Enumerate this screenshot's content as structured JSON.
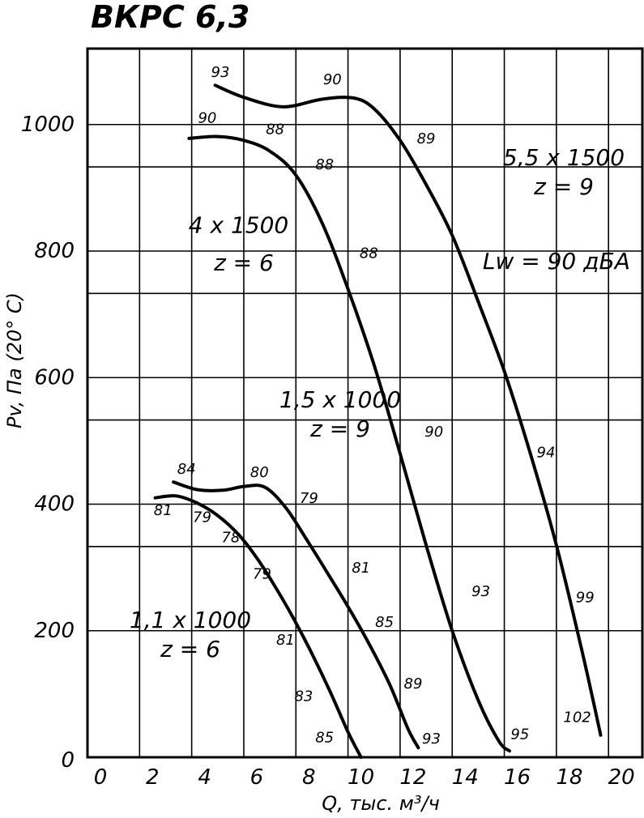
{
  "chart_data": {
    "type": "line",
    "title": "ВКРС 6,3",
    "xlabel": "Q, тыс. м³/ч",
    "ylabel": "Pv, Па (20° С)",
    "xlim": [
      0,
      21.3
    ],
    "ylim": [
      0,
      1120
    ],
    "x_ticks": [
      0,
      2,
      4,
      6,
      8,
      10,
      12,
      14,
      16,
      18,
      20
    ],
    "x_tick_labels": [
      "0",
      "2",
      "4",
      "6",
      "8",
      "10",
      "12",
      "14",
      "16",
      "18",
      "20"
    ],
    "y_labeled_ticks": [
      0,
      200,
      400,
      600,
      800,
      1000
    ],
    "y_tick_labels": [
      "0",
      "200",
      "400",
      "600",
      "800",
      "1000"
    ],
    "y_gridlines": [
      200,
      333,
      400,
      533,
      600,
      733,
      800,
      933,
      1000
    ],
    "grid": true,
    "series": [
      {
        "x": [
          2.6,
          3.4,
          4.2,
          5.0,
          5.8,
          6.5,
          7.2,
          7.9,
          8.6,
          9.3,
          10.0,
          10.5
        ],
        "values": [
          410,
          413,
          402,
          382,
          352,
          315,
          270,
          220,
          165,
          105,
          40,
          0
        ],
        "caption": [
          "1,1 x 1000",
          "z = 6"
        ],
        "points": [
          {
            "x": 2.9,
            "y": 383,
            "label": "81"
          },
          {
            "x": 4.4,
            "y": 372,
            "label": "79"
          },
          {
            "x": 5.5,
            "y": 340,
            "label": "78"
          },
          {
            "x": 6.7,
            "y": 282,
            "label": "79"
          },
          {
            "x": 7.6,
            "y": 178,
            "label": "81"
          },
          {
            "x": 8.3,
            "y": 89,
            "label": "83"
          },
          {
            "x": 9.1,
            "y": 24,
            "label": "85"
          }
        ]
      },
      {
        "x": [
          3.3,
          4.2,
          5.2,
          6.0,
          6.8,
          7.6,
          8.4,
          9.2,
          10.0,
          10.8,
          11.6,
          12.3,
          12.7
        ],
        "values": [
          435,
          423,
          422,
          428,
          427,
          395,
          345,
          292,
          238,
          180,
          115,
          45,
          15
        ],
        "points": [
          {
            "x": 3.8,
            "y": 448,
            "label": "84"
          },
          {
            "x": 6.6,
            "y": 443,
            "label": "80"
          },
          {
            "x": 8.5,
            "y": 402,
            "label": "79"
          },
          {
            "x": 10.5,
            "y": 292,
            "label": "81"
          },
          {
            "x": 11.4,
            "y": 206,
            "label": "85"
          },
          {
            "x": 12.5,
            "y": 109,
            "label": "89"
          },
          {
            "x": 13.2,
            "y": 22,
            "label": "93"
          }
        ]
      },
      {
        "x": [
          3.9,
          5.0,
          6.0,
          7.0,
          8.0,
          9.0,
          10.0,
          11.0,
          12.0,
          13.0,
          14.0,
          15.0,
          15.8,
          16.2
        ],
        "values": [
          978,
          981,
          975,
          958,
          920,
          845,
          740,
          620,
          480,
          335,
          200,
          90,
          25,
          10
        ],
        "caption": [
          "1,5 x 1000",
          "z = 9"
        ],
        "points": [
          {
            "x": 4.6,
            "y": 1003,
            "label": "90"
          },
          {
            "x": 7.2,
            "y": 985,
            "label": "88"
          },
          {
            "x": 9.1,
            "y": 929,
            "label": "88"
          },
          {
            "x": 10.8,
            "y": 789,
            "label": "88"
          },
          {
            "x": 13.3,
            "y": 507,
            "label": "90"
          },
          {
            "x": 15.1,
            "y": 255,
            "label": "93"
          },
          {
            "x": 16.6,
            "y": 29,
            "label": "95"
          }
        ]
      },
      {
        "x": [
          4.9,
          6.0,
          7.5,
          9.0,
          10.2,
          11.0,
          12.0,
          13.0,
          14.0,
          15.0,
          16.0,
          17.0,
          18.0,
          19.0,
          19.7
        ],
        "values": [
          1062,
          1043,
          1028,
          1040,
          1042,
          1025,
          975,
          905,
          825,
          720,
          610,
          480,
          335,
          165,
          35
        ],
        "caption": [
          "5,5 x 1500",
          "z = 9"
        ],
        "points": [
          {
            "x": 5.1,
            "y": 1075,
            "label": "93"
          },
          {
            "x": 9.4,
            "y": 1064,
            "label": "90"
          },
          {
            "x": 13.0,
            "y": 970,
            "label": "89"
          },
          {
            "x": 17.6,
            "y": 474,
            "label": "94"
          },
          {
            "x": 19.1,
            "y": 245,
            "label": "99"
          },
          {
            "x": 18.8,
            "y": 56,
            "label": "102"
          }
        ]
      }
    ],
    "annotations": [
      {
        "text": "4 x 1500",
        "x": 5.8,
        "y": 829
      },
      {
        "text": "z = 6",
        "x": 6.0,
        "y": 769
      },
      {
        "text": "Lw = 90 дБА",
        "x": 18.0,
        "y": 772
      }
    ]
  }
}
